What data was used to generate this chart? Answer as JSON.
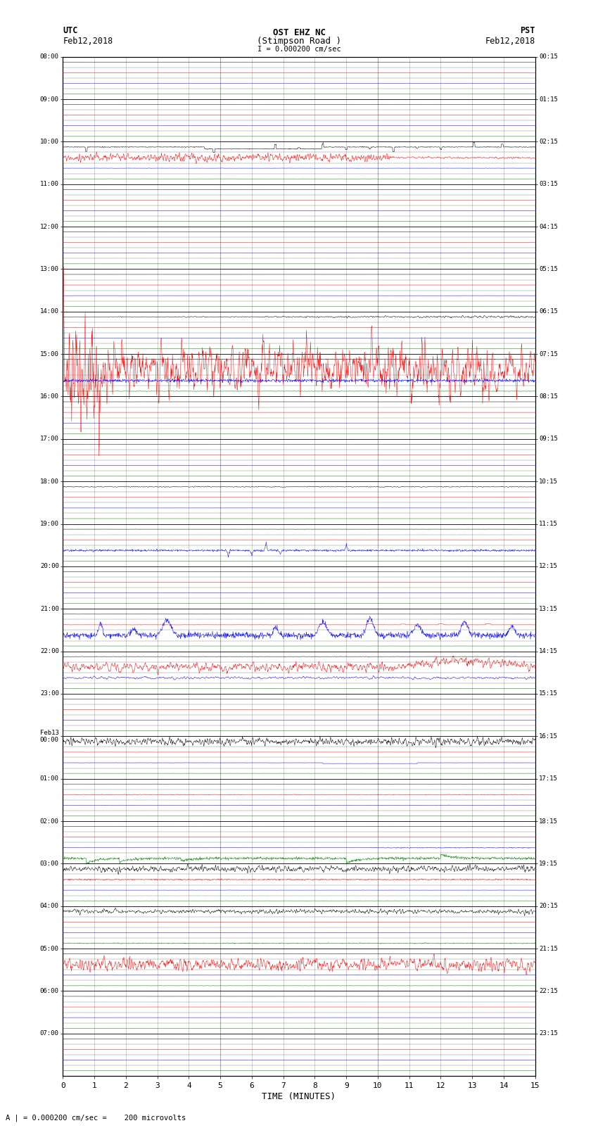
{
  "title_line1": "OST EHZ NC",
  "title_line2": "(Stimpson Road )",
  "title_line3": "I = 0.000200 cm/sec",
  "left_header1": "UTC",
  "left_header2": "Feb12,2018",
  "right_header1": "PST",
  "right_header2": "Feb12,2018",
  "xlabel": "TIME (MINUTES)",
  "footer": "A | = 0.000200 cm/sec =    200 microvolts",
  "utc_times": [
    "08:00",
    "09:00",
    "10:00",
    "11:00",
    "12:00",
    "13:00",
    "14:00",
    "15:00",
    "16:00",
    "17:00",
    "18:00",
    "19:00",
    "20:00",
    "21:00",
    "22:00",
    "23:00",
    "Feb13\n00:00",
    "01:00",
    "02:00",
    "03:00",
    "04:00",
    "05:00",
    "06:00",
    "07:00"
  ],
  "pst_times": [
    "00:15",
    "01:15",
    "02:15",
    "03:15",
    "04:15",
    "05:15",
    "06:15",
    "07:15",
    "08:15",
    "09:15",
    "10:15",
    "11:15",
    "12:15",
    "13:15",
    "14:15",
    "15:15",
    "16:15",
    "17:15",
    "18:15",
    "19:15",
    "20:15",
    "21:15",
    "22:15",
    "23:15"
  ],
  "n_rows": 24,
  "n_cols": 15,
  "bg_color": "#ffffff",
  "vgrid_color": "#888888",
  "hgrid_color": "#000000",
  "minor_hgrid_color": "#000000",
  "trace_colors": [
    "black",
    "red",
    "blue",
    "green"
  ],
  "fig_width": 8.5,
  "fig_height": 16.13,
  "row_amps": [
    0.008,
    0.008,
    0.15,
    0.008,
    0.008,
    0.01,
    0.04,
    0.18,
    0.01,
    0.008,
    0.015,
    0.04,
    0.015,
    0.06,
    0.1,
    0.012,
    0.06,
    0.04,
    0.04,
    0.06,
    0.05,
    0.08,
    0.015,
    0.01
  ],
  "row_active_trace": [
    -1,
    -1,
    1,
    -1,
    -1,
    -1,
    0,
    1,
    -1,
    -1,
    0,
    2,
    0,
    2,
    1,
    -1,
    0,
    2,
    3,
    0,
    0,
    1,
    -1,
    -1
  ],
  "row_active_amp_mult": [
    1,
    1,
    8,
    1,
    1,
    1,
    5,
    6,
    1,
    1,
    3,
    5,
    2,
    6,
    5,
    1,
    4,
    3,
    4,
    4,
    4,
    5,
    1,
    1
  ]
}
